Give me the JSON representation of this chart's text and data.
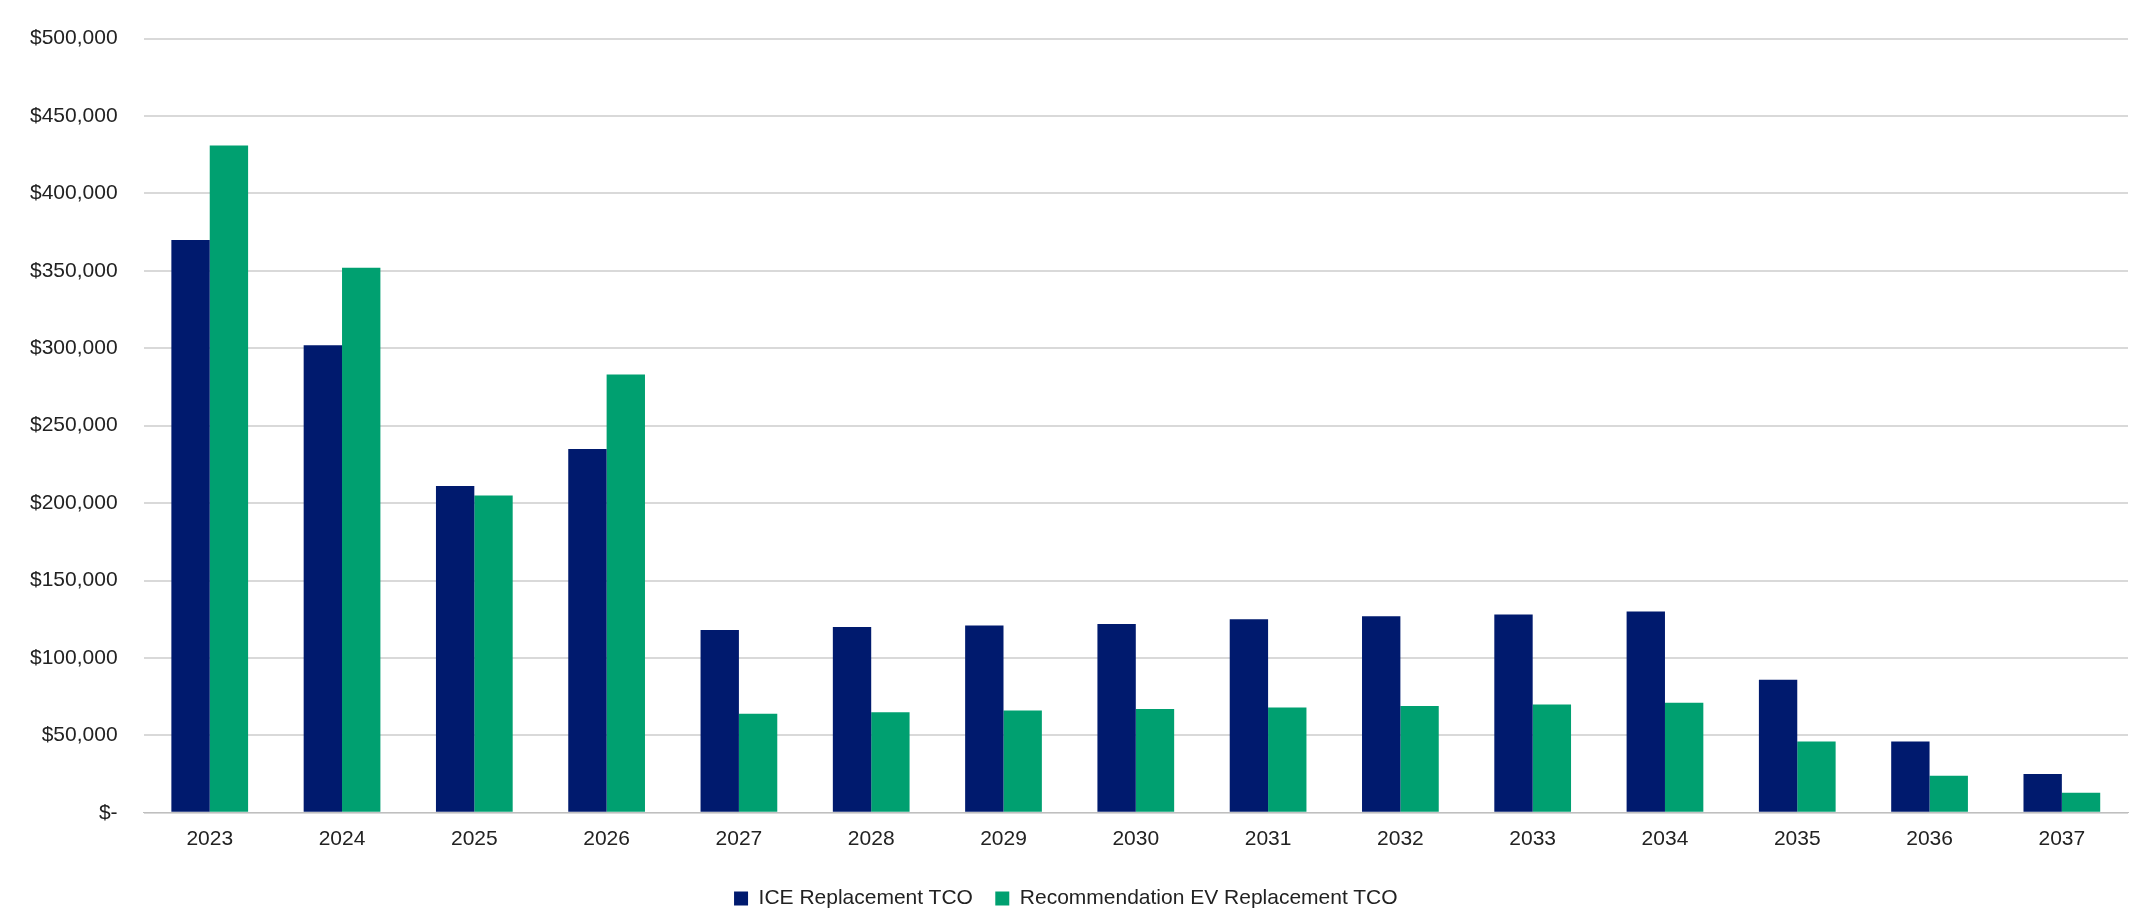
{
  "chart_data": {
    "type": "bar",
    "categories": [
      "2023",
      "2024",
      "2025",
      "2026",
      "2027",
      "2028",
      "2029",
      "2030",
      "2031",
      "2032",
      "2033",
      "2034",
      "2035",
      "2036",
      "2037"
    ],
    "series": [
      {
        "name": "ICE Replacement TCO",
        "color": "#001a6e",
        "values": [
          370000,
          302000,
          211000,
          235000,
          118000,
          120000,
          121000,
          122000,
          125000,
          127000,
          128000,
          130000,
          86000,
          46000,
          25000
        ]
      },
      {
        "name": "Recommendation EV Replacement TCO",
        "color": "#00a070",
        "values": [
          431000,
          352000,
          205000,
          283000,
          64000,
          65000,
          66000,
          67000,
          68000,
          69000,
          70000,
          71000,
          46000,
          24000,
          13000
        ]
      }
    ],
    "ylim": [
      0,
      500000
    ],
    "yticks": [
      {
        "value": 0,
        "label": "$-"
      },
      {
        "value": 50000,
        "label": "$50,000"
      },
      {
        "value": 100000,
        "label": "$100,000"
      },
      {
        "value": 150000,
        "label": "$150,000"
      },
      {
        "value": 200000,
        "label": "$200,000"
      },
      {
        "value": 250000,
        "label": "$250,000"
      },
      {
        "value": 300000,
        "label": "$300,000"
      },
      {
        "value": 350000,
        "label": "$350,000"
      },
      {
        "value": 400000,
        "label": "$400,000"
      },
      {
        "value": 450000,
        "label": "$450,000"
      },
      {
        "value": 500000,
        "label": "$500,000"
      }
    ],
    "grid": "y",
    "legend": "bottom"
  }
}
